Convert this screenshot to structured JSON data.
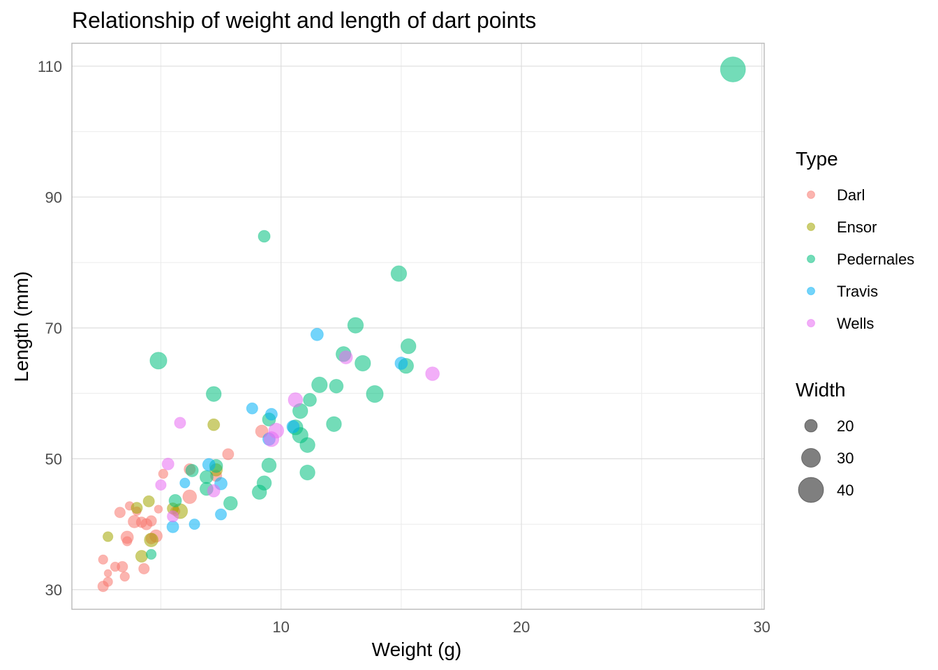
{
  "chart_data": {
    "type": "scatter",
    "title": "Relationship of weight and length of dart points",
    "xlabel": "Weight (g)",
    "ylabel": "Length (mm)",
    "xlim": [
      1.3,
      30.1
    ],
    "ylim": [
      27,
      113.5
    ],
    "x_ticks": [
      10,
      20,
      30
    ],
    "y_ticks": [
      30,
      50,
      70,
      90,
      110
    ],
    "grid": true,
    "legend_position": "right",
    "color_legend": {
      "title": "Type",
      "entries": [
        {
          "name": "Darl",
          "color": "#F8766D"
        },
        {
          "name": "Ensor",
          "color": "#A3A500"
        },
        {
          "name": "Pedernales",
          "color": "#00BF7D"
        },
        {
          "name": "Travis",
          "color": "#00B0F6"
        },
        {
          "name": "Wells",
          "color": "#E76BF3"
        }
      ]
    },
    "size_legend": {
      "title": "Width",
      "values": [
        20,
        30,
        40
      ]
    },
    "series": [
      {
        "name": "Darl",
        "color": "#F8766D",
        "points": [
          {
            "x": 2.6,
            "y": 30.5,
            "w": 17
          },
          {
            "x": 2.8,
            "y": 31.2,
            "w": 15
          },
          {
            "x": 2.8,
            "y": 32.5,
            "w": 12
          },
          {
            "x": 3.1,
            "y": 33.5,
            "w": 15
          },
          {
            "x": 3.4,
            "y": 33.5,
            "w": 17
          },
          {
            "x": 3.5,
            "y": 32.0,
            "w": 15
          },
          {
            "x": 2.6,
            "y": 34.6,
            "w": 15
          },
          {
            "x": 4.3,
            "y": 33.2,
            "w": 17
          },
          {
            "x": 3.6,
            "y": 38.0,
            "w": 20
          },
          {
            "x": 3.6,
            "y": 37.4,
            "w": 15
          },
          {
            "x": 4.2,
            "y": 40.3,
            "w": 17
          },
          {
            "x": 3.9,
            "y": 40.4,
            "w": 20
          },
          {
            "x": 4.4,
            "y": 40.0,
            "w": 18
          },
          {
            "x": 4.6,
            "y": 40.5,
            "w": 17
          },
          {
            "x": 3.3,
            "y": 41.8,
            "w": 17
          },
          {
            "x": 3.7,
            "y": 42.8,
            "w": 14
          },
          {
            "x": 4.0,
            "y": 42.0,
            "w": 14
          },
          {
            "x": 4.6,
            "y": 37.8,
            "w": 17
          },
          {
            "x": 4.8,
            "y": 38.2,
            "w": 20
          },
          {
            "x": 4.9,
            "y": 42.3,
            "w": 13
          },
          {
            "x": 5.6,
            "y": 42.0,
            "w": 15
          },
          {
            "x": 6.2,
            "y": 44.2,
            "w": 22
          },
          {
            "x": 5.1,
            "y": 47.7,
            "w": 15
          },
          {
            "x": 6.2,
            "y": 48.4,
            "w": 18
          },
          {
            "x": 7.3,
            "y": 47.4,
            "w": 18
          },
          {
            "x": 7.8,
            "y": 50.7,
            "w": 18
          },
          {
            "x": 9.2,
            "y": 54.2,
            "w": 20
          }
        ]
      },
      {
        "name": "Ensor",
        "color": "#A3A500",
        "points": [
          {
            "x": 2.8,
            "y": 38.1,
            "w": 16
          },
          {
            "x": 4.0,
            "y": 42.5,
            "w": 18
          },
          {
            "x": 4.5,
            "y": 43.5,
            "w": 18
          },
          {
            "x": 4.6,
            "y": 37.6,
            "w": 22
          },
          {
            "x": 4.2,
            "y": 35.1,
            "w": 19
          },
          {
            "x": 5.8,
            "y": 42.0,
            "w": 24
          },
          {
            "x": 7.2,
            "y": 55.2,
            "w": 19
          },
          {
            "x": 7.3,
            "y": 48.3,
            "w": 20
          },
          {
            "x": 5.5,
            "y": 42.4,
            "w": 18
          }
        ]
      },
      {
        "name": "Pedernales",
        "color": "#00BF7D",
        "points": [
          {
            "x": 28.8,
            "y": 109.5,
            "w": 40
          },
          {
            "x": 9.3,
            "y": 84.0,
            "w": 19
          },
          {
            "x": 14.9,
            "y": 78.3,
            "w": 25
          },
          {
            "x": 13.1,
            "y": 70.4,
            "w": 25
          },
          {
            "x": 15.3,
            "y": 67.2,
            "w": 24
          },
          {
            "x": 12.6,
            "y": 66.0,
            "w": 24
          },
          {
            "x": 13.4,
            "y": 64.6,
            "w": 25
          },
          {
            "x": 15.2,
            "y": 64.2,
            "w": 24
          },
          {
            "x": 4.9,
            "y": 65.0,
            "w": 27
          },
          {
            "x": 11.6,
            "y": 61.3,
            "w": 25
          },
          {
            "x": 12.3,
            "y": 61.1,
            "w": 22
          },
          {
            "x": 13.9,
            "y": 59.9,
            "w": 27
          },
          {
            "x": 7.2,
            "y": 59.9,
            "w": 24
          },
          {
            "x": 11.2,
            "y": 59.0,
            "w": 21
          },
          {
            "x": 10.8,
            "y": 57.3,
            "w": 24
          },
          {
            "x": 9.5,
            "y": 56.0,
            "w": 21
          },
          {
            "x": 12.2,
            "y": 55.3,
            "w": 24
          },
          {
            "x": 10.6,
            "y": 54.8,
            "w": 24
          },
          {
            "x": 10.8,
            "y": 53.6,
            "w": 25
          },
          {
            "x": 11.1,
            "y": 52.1,
            "w": 24
          },
          {
            "x": 9.5,
            "y": 49.0,
            "w": 23
          },
          {
            "x": 7.3,
            "y": 48.9,
            "w": 21
          },
          {
            "x": 11.1,
            "y": 47.9,
            "w": 24
          },
          {
            "x": 6.9,
            "y": 47.2,
            "w": 21
          },
          {
            "x": 9.3,
            "y": 46.3,
            "w": 23
          },
          {
            "x": 6.3,
            "y": 48.2,
            "w": 20
          },
          {
            "x": 9.1,
            "y": 44.9,
            "w": 23
          },
          {
            "x": 6.9,
            "y": 45.4,
            "w": 21
          },
          {
            "x": 7.9,
            "y": 43.2,
            "w": 22
          },
          {
            "x": 5.6,
            "y": 43.6,
            "w": 20
          },
          {
            "x": 4.6,
            "y": 35.4,
            "w": 16
          }
        ]
      },
      {
        "name": "Travis",
        "color": "#00B0F6",
        "points": [
          {
            "x": 11.5,
            "y": 69.0,
            "w": 20
          },
          {
            "x": 15.0,
            "y": 64.6,
            "w": 20
          },
          {
            "x": 8.8,
            "y": 57.7,
            "w": 18
          },
          {
            "x": 9.6,
            "y": 56.8,
            "w": 19
          },
          {
            "x": 10.5,
            "y": 54.9,
            "w": 20
          },
          {
            "x": 9.5,
            "y": 53.0,
            "w": 20
          },
          {
            "x": 7.0,
            "y": 49.1,
            "w": 20
          },
          {
            "x": 6.0,
            "y": 46.3,
            "w": 16
          },
          {
            "x": 7.5,
            "y": 46.2,
            "w": 20
          },
          {
            "x": 5.5,
            "y": 39.6,
            "w": 19
          },
          {
            "x": 6.4,
            "y": 40.0,
            "w": 17
          },
          {
            "x": 7.5,
            "y": 41.5,
            "w": 18
          }
        ]
      },
      {
        "name": "Wells",
        "color": "#E76BF3",
        "points": [
          {
            "x": 16.3,
            "y": 63.0,
            "w": 22
          },
          {
            "x": 12.7,
            "y": 65.5,
            "w": 21
          },
          {
            "x": 10.6,
            "y": 59.0,
            "w": 23
          },
          {
            "x": 9.8,
            "y": 54.3,
            "w": 24
          },
          {
            "x": 9.6,
            "y": 53.0,
            "w": 24
          },
          {
            "x": 5.8,
            "y": 55.5,
            "w": 18
          },
          {
            "x": 5.3,
            "y": 49.2,
            "w": 19
          },
          {
            "x": 5.0,
            "y": 46.0,
            "w": 17
          },
          {
            "x": 7.2,
            "y": 45.1,
            "w": 20
          },
          {
            "x": 5.5,
            "y": 41.2,
            "w": 18
          }
        ]
      }
    ]
  }
}
